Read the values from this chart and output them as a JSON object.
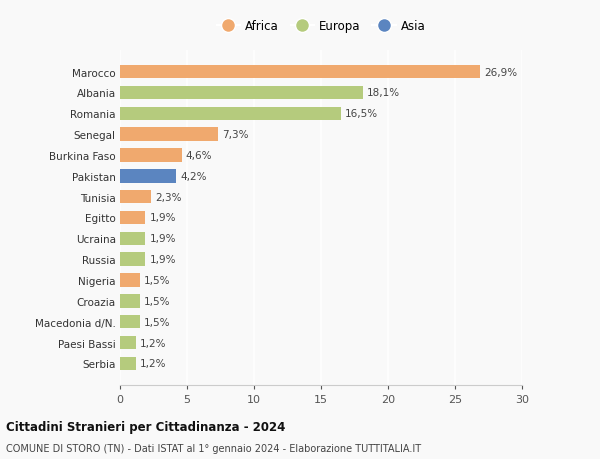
{
  "categories": [
    "Serbia",
    "Paesi Bassi",
    "Macedonia d/N.",
    "Croazia",
    "Nigeria",
    "Russia",
    "Ucraina",
    "Egitto",
    "Tunisia",
    "Pakistan",
    "Burkina Faso",
    "Senegal",
    "Romania",
    "Albania",
    "Marocco"
  ],
  "values": [
    1.2,
    1.2,
    1.5,
    1.5,
    1.5,
    1.9,
    1.9,
    1.9,
    2.3,
    4.2,
    4.6,
    7.3,
    16.5,
    18.1,
    26.9
  ],
  "labels": [
    "1,2%",
    "1,2%",
    "1,5%",
    "1,5%",
    "1,5%",
    "1,9%",
    "1,9%",
    "1,9%",
    "2,3%",
    "4,2%",
    "4,6%",
    "7,3%",
    "16,5%",
    "18,1%",
    "26,9%"
  ],
  "colors": [
    "#b5cb7d",
    "#b5cb7d",
    "#b5cb7d",
    "#b5cb7d",
    "#f0a96e",
    "#b5cb7d",
    "#b5cb7d",
    "#f0a96e",
    "#f0a96e",
    "#5b85c0",
    "#f0a96e",
    "#f0a96e",
    "#b5cb7d",
    "#b5cb7d",
    "#f0a96e"
  ],
  "africa_color": "#f0a96e",
  "europa_color": "#b5cb7d",
  "asia_color": "#5b85c0",
  "background_color": "#f9f9f9",
  "title": "Cittadini Stranieri per Cittadinanza - 2024",
  "subtitle": "COMUNE DI STORO (TN) - Dati ISTAT al 1° gennaio 2024 - Elaborazione TUTTITALIA.IT",
  "xlim": [
    0,
    30
  ],
  "xticks": [
    0,
    5,
    10,
    15,
    20,
    25,
    30
  ]
}
